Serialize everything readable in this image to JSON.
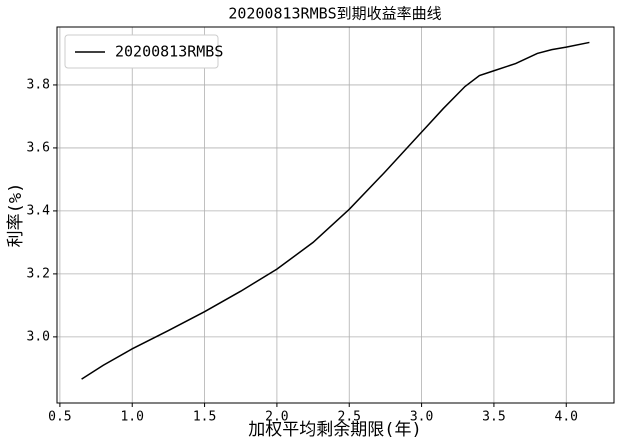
{
  "chart_data": {
    "type": "line",
    "title": "20200813RMBS到期收益率曲线",
    "x_label": "加权平均剩余期限(年)",
    "y_label": "利率(%)",
    "x": [
      0.65,
      0.8,
      1.0,
      1.25,
      1.5,
      1.75,
      2.0,
      2.25,
      2.5,
      2.75,
      3.0,
      3.15,
      3.3,
      3.4,
      3.5,
      3.65,
      3.8,
      3.9,
      4.0,
      4.16
    ],
    "series": [
      {
        "name": "20200813RMBS",
        "color": "#000000",
        "values": [
          2.866,
          2.91,
          2.962,
          3.02,
          3.08,
          3.145,
          3.215,
          3.3,
          3.405,
          3.525,
          3.65,
          3.725,
          3.795,
          3.83,
          3.845,
          3.868,
          3.9,
          3.912,
          3.92,
          3.935
        ]
      }
    ],
    "xlim": [
      0.48,
      4.33
    ],
    "ylim": [
      2.79,
      3.984
    ],
    "xticks": [
      0.5,
      {
        "value": 1,
        "label": "1.0"
      },
      1.5,
      {
        "value": 2,
        "label": "2.0"
      },
      2.5,
      {
        "value": 3,
        "label": "3.0"
      },
      3.5,
      {
        "value": 4,
        "label": "4.0"
      }
    ],
    "yticks": [
      {
        "value": 3,
        "label": "3.0"
      },
      3.2,
      3.4,
      3.6,
      3.8
    ],
    "grid": true,
    "legend": "upper-left"
  }
}
